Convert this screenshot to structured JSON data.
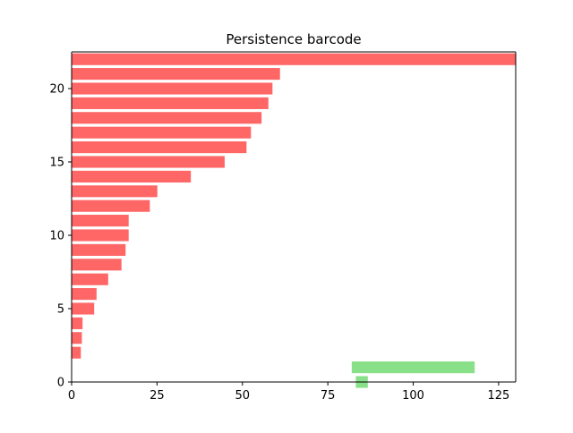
{
  "chart_data": {
    "type": "bar",
    "title": "Persistence barcode",
    "xlabel": "",
    "ylabel": "",
    "xlim": [
      0,
      130
    ],
    "ylim": [
      0,
      22.5
    ],
    "x_ticks": [
      "0",
      "25",
      "50",
      "75",
      "100",
      "125"
    ],
    "y_ticks": [
      "0",
      "5",
      "10",
      "15",
      "20"
    ],
    "series": [
      {
        "color": "#ff6666",
        "bars": [
          {
            "y": 22,
            "birth": 0,
            "death": 130
          },
          {
            "y": 21,
            "birth": 0,
            "death": 61
          },
          {
            "y": 20,
            "birth": 0,
            "death": 58.8
          },
          {
            "y": 19,
            "birth": 0,
            "death": 57.6
          },
          {
            "y": 18,
            "birth": 0,
            "death": 55.6
          },
          {
            "y": 17,
            "birth": 0,
            "death": 52.5
          },
          {
            "y": 16,
            "birth": 0,
            "death": 51.2
          },
          {
            "y": 15,
            "birth": 0,
            "death": 44.8
          },
          {
            "y": 14,
            "birth": 0,
            "death": 34.9
          },
          {
            "y": 13,
            "birth": 0,
            "death": 25.1
          },
          {
            "y": 12,
            "birth": 0,
            "death": 22.9
          },
          {
            "y": 11,
            "birth": 0,
            "death": 16.7
          },
          {
            "y": 10,
            "birth": 0,
            "death": 16.7
          },
          {
            "y": 9,
            "birth": 0,
            "death": 15.8
          },
          {
            "y": 8,
            "birth": 0,
            "death": 14.6
          },
          {
            "y": 7,
            "birth": 0,
            "death": 10.7
          },
          {
            "y": 6,
            "birth": 0,
            "death": 7.3
          },
          {
            "y": 5,
            "birth": 0,
            "death": 6.6
          },
          {
            "y": 4,
            "birth": 0,
            "death": 3.2
          },
          {
            "y": 3,
            "birth": 0,
            "death": 3.0
          },
          {
            "y": 2,
            "birth": 0,
            "death": 2.7
          }
        ]
      },
      {
        "color": "#88e088",
        "bars": [
          {
            "y": 1,
            "birth": 82,
            "death": 118
          },
          {
            "y": 0,
            "birth": 83.2,
            "death": 86.7
          }
        ]
      }
    ]
  }
}
